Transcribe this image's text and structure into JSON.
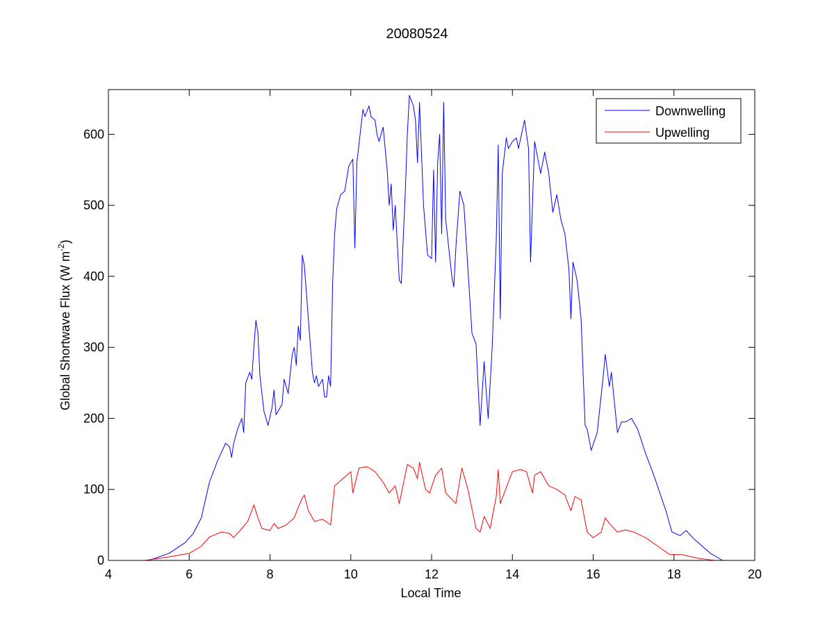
{
  "chart_data": {
    "type": "line",
    "title": "20080524",
    "xlabel": "Local Time",
    "ylabel": {
      "main": "Global Shortwave Flux (W m",
      "sup": "-2",
      "end": ")"
    },
    "xlim": [
      4,
      20
    ],
    "ylim": [
      0,
      663
    ],
    "xticks": [
      4,
      6,
      8,
      10,
      12,
      14,
      16,
      18,
      20
    ],
    "yticks": [
      0,
      100,
      200,
      300,
      400,
      500,
      600
    ],
    "grid": false,
    "legend_position": "top-right",
    "series": [
      {
        "name": "Downwelling",
        "color": "#0000ff",
        "points": [
          [
            4.2,
            0
          ],
          [
            5.0,
            0
          ],
          [
            5.5,
            10
          ],
          [
            5.9,
            25
          ],
          [
            6.1,
            38
          ],
          [
            6.3,
            60
          ],
          [
            6.5,
            110
          ],
          [
            6.7,
            140
          ],
          [
            6.9,
            165
          ],
          [
            7.0,
            160
          ],
          [
            7.05,
            145
          ],
          [
            7.1,
            165
          ],
          [
            7.2,
            185
          ],
          [
            7.3,
            200
          ],
          [
            7.35,
            180
          ],
          [
            7.4,
            250
          ],
          [
            7.5,
            265
          ],
          [
            7.55,
            255
          ],
          [
            7.6,
            300
          ],
          [
            7.65,
            338
          ],
          [
            7.7,
            320
          ],
          [
            7.75,
            260
          ],
          [
            7.85,
            210
          ],
          [
            7.95,
            190
          ],
          [
            8.05,
            215
          ],
          [
            8.1,
            240
          ],
          [
            8.15,
            205
          ],
          [
            8.3,
            220
          ],
          [
            8.35,
            255
          ],
          [
            8.45,
            235
          ],
          [
            8.55,
            290
          ],
          [
            8.6,
            300
          ],
          [
            8.65,
            275
          ],
          [
            8.7,
            330
          ],
          [
            8.75,
            310
          ],
          [
            8.8,
            430
          ],
          [
            8.85,
            415
          ],
          [
            8.95,
            340
          ],
          [
            9.05,
            265
          ],
          [
            9.1,
            250
          ],
          [
            9.15,
            260
          ],
          [
            9.2,
            245
          ],
          [
            9.3,
            255
          ],
          [
            9.35,
            230
          ],
          [
            9.4,
            230
          ],
          [
            9.45,
            260
          ],
          [
            9.5,
            245
          ],
          [
            9.55,
            390
          ],
          [
            9.6,
            460
          ],
          [
            9.65,
            495
          ],
          [
            9.75,
            515
          ],
          [
            9.85,
            520
          ],
          [
            9.95,
            555
          ],
          [
            10.05,
            565
          ],
          [
            10.1,
            440
          ],
          [
            10.15,
            560
          ],
          [
            10.3,
            635
          ],
          [
            10.35,
            625
          ],
          [
            10.45,
            640
          ],
          [
            10.5,
            625
          ],
          [
            10.6,
            620
          ],
          [
            10.65,
            600
          ],
          [
            10.7,
            590
          ],
          [
            10.8,
            610
          ],
          [
            10.9,
            550
          ],
          [
            10.95,
            500
          ],
          [
            11.0,
            530
          ],
          [
            11.05,
            465
          ],
          [
            11.1,
            500
          ],
          [
            11.2,
            395
          ],
          [
            11.25,
            390
          ],
          [
            11.35,
            520
          ],
          [
            11.4,
            600
          ],
          [
            11.45,
            655
          ],
          [
            11.55,
            640
          ],
          [
            11.6,
            620
          ],
          [
            11.65,
            560
          ],
          [
            11.7,
            645
          ],
          [
            11.8,
            500
          ],
          [
            11.9,
            430
          ],
          [
            12.0,
            425
          ],
          [
            12.05,
            550
          ],
          [
            12.1,
            420
          ],
          [
            12.15,
            560
          ],
          [
            12.2,
            600
          ],
          [
            12.25,
            460
          ],
          [
            12.3,
            645
          ],
          [
            12.35,
            480
          ],
          [
            12.5,
            400
          ],
          [
            12.55,
            385
          ],
          [
            12.6,
            440
          ],
          [
            12.7,
            520
          ],
          [
            12.8,
            500
          ],
          [
            12.9,
            410
          ],
          [
            13.0,
            320
          ],
          [
            13.1,
            305
          ],
          [
            13.2,
            190
          ],
          [
            13.3,
            280
          ],
          [
            13.4,
            200
          ],
          [
            13.5,
            300
          ],
          [
            13.6,
            450
          ],
          [
            13.65,
            585
          ],
          [
            13.7,
            340
          ],
          [
            13.75,
            545
          ],
          [
            13.85,
            595
          ],
          [
            13.9,
            580
          ],
          [
            14.0,
            590
          ],
          [
            14.1,
            595
          ],
          [
            14.15,
            580
          ],
          [
            14.3,
            620
          ],
          [
            14.4,
            580
          ],
          [
            14.45,
            420
          ],
          [
            14.55,
            590
          ],
          [
            14.7,
            545
          ],
          [
            14.8,
            575
          ],
          [
            14.9,
            545
          ],
          [
            15.0,
            490
          ],
          [
            15.1,
            515
          ],
          [
            15.2,
            480
          ],
          [
            15.3,
            460
          ],
          [
            15.4,
            410
          ],
          [
            15.45,
            340
          ],
          [
            15.5,
            420
          ],
          [
            15.6,
            395
          ],
          [
            15.7,
            340
          ],
          [
            15.8,
            190
          ],
          [
            15.85,
            185
          ],
          [
            15.95,
            155
          ],
          [
            16.1,
            180
          ],
          [
            16.25,
            260
          ],
          [
            16.3,
            290
          ],
          [
            16.4,
            245
          ],
          [
            16.45,
            265
          ],
          [
            16.6,
            180
          ],
          [
            16.7,
            195
          ],
          [
            16.8,
            195
          ],
          [
            16.95,
            200
          ],
          [
            17.1,
            185
          ],
          [
            17.3,
            150
          ],
          [
            17.5,
            120
          ],
          [
            17.8,
            70
          ],
          [
            17.95,
            40
          ],
          [
            18.15,
            35
          ],
          [
            18.3,
            42
          ],
          [
            18.5,
            30
          ],
          [
            18.9,
            10
          ],
          [
            19.2,
            0
          ]
        ]
      },
      {
        "name": "Upwelling",
        "color": "#ff0000",
        "points": [
          [
            4.2,
            0
          ],
          [
            4.9,
            0
          ],
          [
            5.5,
            5
          ],
          [
            6.0,
            10
          ],
          [
            6.3,
            20
          ],
          [
            6.5,
            33
          ],
          [
            6.8,
            40
          ],
          [
            7.0,
            38
          ],
          [
            7.1,
            32
          ],
          [
            7.3,
            45
          ],
          [
            7.45,
            55
          ],
          [
            7.6,
            78
          ],
          [
            7.7,
            60
          ],
          [
            7.8,
            45
          ],
          [
            8.0,
            42
          ],
          [
            8.1,
            52
          ],
          [
            8.2,
            45
          ],
          [
            8.4,
            50
          ],
          [
            8.6,
            60
          ],
          [
            8.7,
            75
          ],
          [
            8.8,
            88
          ],
          [
            8.85,
            92
          ],
          [
            8.95,
            70
          ],
          [
            9.1,
            55
          ],
          [
            9.3,
            58
          ],
          [
            9.5,
            50
          ],
          [
            9.6,
            105
          ],
          [
            9.8,
            115
          ],
          [
            10.0,
            125
          ],
          [
            10.05,
            95
          ],
          [
            10.2,
            130
          ],
          [
            10.4,
            132
          ],
          [
            10.6,
            125
          ],
          [
            10.8,
            110
          ],
          [
            10.95,
            95
          ],
          [
            11.1,
            105
          ],
          [
            11.2,
            80
          ],
          [
            11.4,
            135
          ],
          [
            11.55,
            130
          ],
          [
            11.65,
            115
          ],
          [
            11.7,
            138
          ],
          [
            11.85,
            100
          ],
          [
            11.95,
            95
          ],
          [
            12.1,
            120
          ],
          [
            12.25,
            130
          ],
          [
            12.35,
            95
          ],
          [
            12.6,
            80
          ],
          [
            12.75,
            130
          ],
          [
            12.9,
            100
          ],
          [
            13.1,
            45
          ],
          [
            13.2,
            40
          ],
          [
            13.3,
            62
          ],
          [
            13.45,
            45
          ],
          [
            13.6,
            90
          ],
          [
            13.65,
            128
          ],
          [
            13.7,
            80
          ],
          [
            13.9,
            110
          ],
          [
            14.0,
            125
          ],
          [
            14.2,
            128
          ],
          [
            14.35,
            125
          ],
          [
            14.5,
            95
          ],
          [
            14.55,
            120
          ],
          [
            14.7,
            125
          ],
          [
            14.9,
            105
          ],
          [
            15.1,
            100
          ],
          [
            15.3,
            92
          ],
          [
            15.45,
            70
          ],
          [
            15.55,
            90
          ],
          [
            15.7,
            85
          ],
          [
            15.85,
            40
          ],
          [
            16.0,
            32
          ],
          [
            16.2,
            40
          ],
          [
            16.3,
            60
          ],
          [
            16.4,
            52
          ],
          [
            16.6,
            40
          ],
          [
            16.8,
            43
          ],
          [
            17.0,
            40
          ],
          [
            17.3,
            32
          ],
          [
            17.6,
            20
          ],
          [
            17.9,
            8
          ],
          [
            18.2,
            8
          ],
          [
            18.6,
            3
          ],
          [
            19.0,
            0
          ]
        ]
      }
    ]
  }
}
